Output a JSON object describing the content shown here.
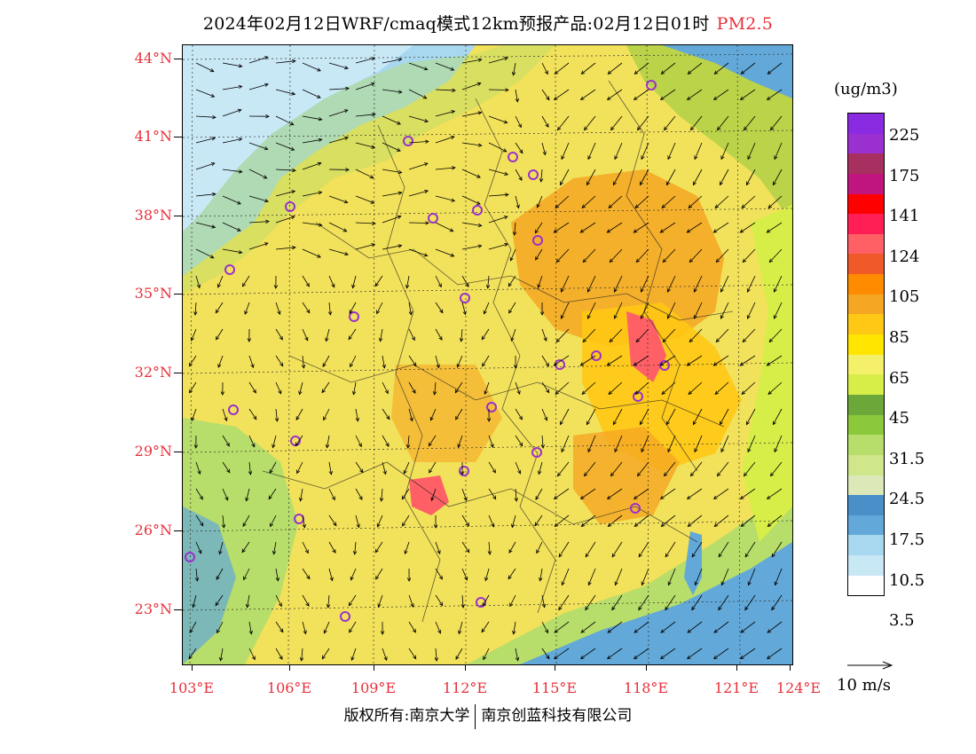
{
  "title": {
    "main": "2024年02月12日WRF/cmaq模式12km预报产品:02月12日01时",
    "pollutant": "PM2.5"
  },
  "axes": {
    "lat_labels": [
      "44°N",
      "41°N",
      "38°N",
      "35°N",
      "32°N",
      "29°N",
      "26°N",
      "23°N"
    ],
    "lon_labels": [
      "103°E",
      "106°E",
      "109°E",
      "112°E",
      "115°E",
      "118°E",
      "121°E",
      "124°E"
    ]
  },
  "legend": {
    "units": "(ug/m3)",
    "labels": [
      "225",
      "175",
      "141",
      "124",
      "105",
      "85",
      "65",
      "45",
      "31.5",
      "24.5",
      "17.5",
      "10.5",
      "3.5"
    ],
    "colors": [
      "#8a2be2",
      "#9b30d0",
      "#a83060",
      "#c0157f",
      "#ff0000",
      "#ff1f55",
      "#ff6066",
      "#f05a28",
      "#ff8c00",
      "#f5a623",
      "#ffc814",
      "#ffe600",
      "#f4f06a",
      "#d8ee48",
      "#6ba839",
      "#8cc83c",
      "#b7dd6a",
      "#cfe68a",
      "#dce8b8",
      "#4a8fc8",
      "#62a8d8",
      "#a8d8f0",
      "#c9e8f6",
      "#ffffff"
    ]
  },
  "wind_vector": {
    "label": "10 m/s"
  },
  "footer": {
    "left": "版权所有:南京大学",
    "right": "南京创蓝科技有限公司"
  }
}
